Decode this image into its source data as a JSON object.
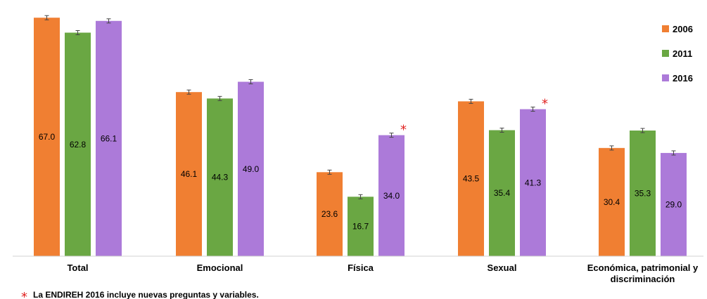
{
  "chart_data": {
    "type": "bar",
    "categories": [
      "Total",
      "Emocional",
      "Física",
      "Sexual",
      "Económica, patrimonial y discriminación"
    ],
    "category_lines": [
      [
        "Total"
      ],
      [
        "Emocional"
      ],
      [
        "Física"
      ],
      [
        "Sexual"
      ],
      [
        "Económica, patrimonial y",
        "discriminación"
      ]
    ],
    "series": [
      {
        "name": "2006",
        "color": "#f07f32",
        "values": [
          67.0,
          46.1,
          23.6,
          43.5,
          30.4
        ]
      },
      {
        "name": "2011",
        "color": "#6aa743",
        "values": [
          62.8,
          44.3,
          16.7,
          35.4,
          35.3
        ]
      },
      {
        "name": "2016",
        "color": "#ac7ad9",
        "values": [
          66.1,
          49.0,
          34.0,
          41.3,
          29.0
        ]
      }
    ],
    "value_labels": [
      [
        "67.0",
        "46.1",
        "23.6",
        "43.5",
        "30.4"
      ],
      [
        "62.8",
        "44.3",
        "16.7",
        "35.4",
        "35.3"
      ],
      [
        "66.1",
        "49.0",
        "34.0",
        "41.3",
        "29.0"
      ]
    ],
    "asterisks": [
      {
        "series": 2,
        "category": 2
      },
      {
        "series": 2,
        "category": 3
      }
    ],
    "ylim": [
      0,
      70
    ],
    "error_bars": true,
    "legend_position": "top-right",
    "grid": false,
    "footnote": {
      "symbol": "*",
      "text": "La ENDIREH 2016 incluye nuevas preguntas y variables."
    }
  }
}
